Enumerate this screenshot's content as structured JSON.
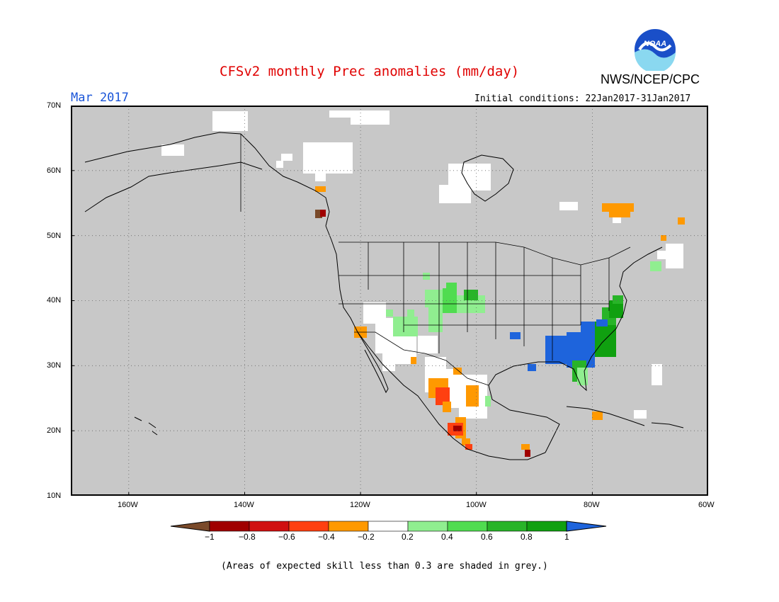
{
  "header": {
    "title": "CFSv2 monthly Prec anomalies (mm/day)",
    "agency": "NWS/NCEP/CPC",
    "month": "Mar 2017",
    "initial_conditions": "Initial conditions: 22Jan2017-31Jan2017"
  },
  "logo": {
    "text": "NOAA"
  },
  "map": {
    "projection": "lat-lon",
    "lon_range": [
      -170,
      -60
    ],
    "lat_range": [
      10,
      70
    ],
    "lat_labels": [
      "70N",
      "60N",
      "50N",
      "40N",
      "30N",
      "20N",
      "10N"
    ],
    "lon_labels": [
      "160W",
      "140W",
      "120W",
      "100W",
      "80W",
      "60W"
    ],
    "background_color": "#c8c8c8",
    "gridlines": "dotted"
  },
  "colorbar": {
    "tick_labels": [
      "−1",
      "−0.8",
      "−0.6",
      "−0.4",
      "−0.2",
      "0.2",
      "0.4",
      "0.6",
      "0.8",
      "1"
    ],
    "colors": [
      "#7a4a2a",
      "#a00000",
      "#d01010",
      "#ff4010",
      "#ff9900",
      "#ffffff",
      "#90ee90",
      "#50dc50",
      "#28b428",
      "#10a010",
      "#1e64dc"
    ]
  },
  "footnote": "(Areas of expected skill less than 0.3 are shaded in grey.)"
}
